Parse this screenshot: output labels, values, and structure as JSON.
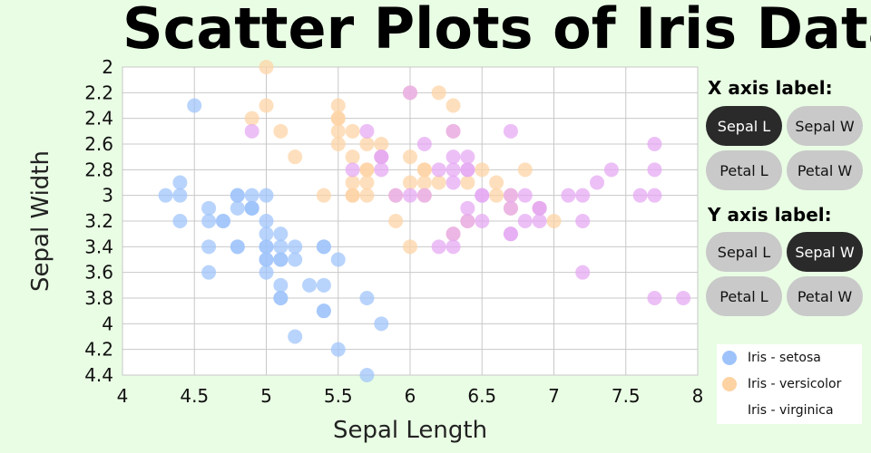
{
  "title": "Scatter Plots of Iris Dataset",
  "controls": {
    "x_label": "X axis label:",
    "y_label": "Y axis label:",
    "x_buttons": [
      "Sepal L",
      "Sepal W",
      "Petal L",
      "Petal W"
    ],
    "y_buttons": [
      "Sepal L",
      "Sepal W",
      "Petal L",
      "Petal W"
    ],
    "x_selected": "Sepal L",
    "y_selected": "Sepal W"
  },
  "colors": {
    "background": "#e9fde4",
    "setosa": "#9ec3fb",
    "versicolor": "#fdd3a3",
    "virginica": "#e5a8f3",
    "button": "#c9c9c9",
    "button_active": "#2a2a2a"
  },
  "chart_data": {
    "type": "scatter",
    "xlabel": "Sepal Length",
    "ylabel": "Sepal Width",
    "xlim": [
      4,
      8
    ],
    "ylim": [
      2,
      4.4
    ],
    "y_inverted": true,
    "grid": true,
    "legend_position": "bottom-right",
    "x_ticks": [
      "4",
      "4.5",
      "5",
      "5.5",
      "6",
      "6.5",
      "7",
      "7.5",
      "8"
    ],
    "y_ticks": [
      "2",
      "2.2",
      "2.4",
      "2.6",
      "2.8",
      "3",
      "3.2",
      "3.4",
      "3.6",
      "3.8",
      "4",
      "4.2",
      "4.4"
    ],
    "series": [
      {
        "name": "Iris - setosa",
        "points": [
          [
            4.5,
            2.3
          ],
          [
            4.3,
            3.0
          ],
          [
            4.4,
            2.9
          ],
          [
            4.4,
            3.0
          ],
          [
            4.4,
            3.2
          ],
          [
            4.6,
            3.1
          ],
          [
            4.6,
            3.2
          ],
          [
            4.6,
            3.4
          ],
          [
            4.6,
            3.6
          ],
          [
            4.7,
            3.2
          ],
          [
            4.7,
            3.2
          ],
          [
            4.8,
            3.0
          ],
          [
            4.8,
            3.0
          ],
          [
            4.8,
            3.1
          ],
          [
            4.8,
            3.4
          ],
          [
            4.8,
            3.4
          ],
          [
            4.9,
            3.0
          ],
          [
            4.9,
            3.1
          ],
          [
            4.9,
            3.1
          ],
          [
            4.9,
            3.1
          ],
          [
            5.0,
            3.0
          ],
          [
            5.0,
            3.2
          ],
          [
            5.0,
            3.3
          ],
          [
            5.0,
            3.4
          ],
          [
            5.0,
            3.4
          ],
          [
            5.0,
            3.5
          ],
          [
            5.0,
            3.5
          ],
          [
            5.0,
            3.6
          ],
          [
            5.1,
            3.3
          ],
          [
            5.1,
            3.4
          ],
          [
            5.1,
            3.5
          ],
          [
            5.1,
            3.5
          ],
          [
            5.1,
            3.7
          ],
          [
            5.1,
            3.8
          ],
          [
            5.1,
            3.8
          ],
          [
            5.2,
            3.4
          ],
          [
            5.2,
            3.5
          ],
          [
            5.2,
            4.1
          ],
          [
            5.3,
            3.7
          ],
          [
            5.4,
            3.4
          ],
          [
            5.4,
            3.4
          ],
          [
            5.4,
            3.7
          ],
          [
            5.4,
            3.9
          ],
          [
            5.4,
            3.9
          ],
          [
            5.5,
            3.5
          ],
          [
            5.5,
            4.2
          ],
          [
            5.7,
            3.8
          ],
          [
            5.7,
            4.4
          ],
          [
            5.8,
            4.0
          ]
        ]
      },
      {
        "name": "Iris - versicolor",
        "points": [
          [
            5.0,
            2.0
          ],
          [
            4.9,
            2.4
          ],
          [
            5.0,
            2.3
          ],
          [
            5.1,
            2.5
          ],
          [
            5.2,
            2.7
          ],
          [
            5.4,
            3.0
          ],
          [
            5.5,
            2.3
          ],
          [
            5.5,
            2.4
          ],
          [
            5.5,
            2.4
          ],
          [
            5.5,
            2.5
          ],
          [
            5.5,
            2.6
          ],
          [
            5.6,
            2.5
          ],
          [
            5.6,
            2.7
          ],
          [
            5.6,
            2.9
          ],
          [
            5.6,
            3.0
          ],
          [
            5.6,
            3.0
          ],
          [
            5.7,
            2.6
          ],
          [
            5.7,
            2.8
          ],
          [
            5.7,
            2.8
          ],
          [
            5.7,
            2.9
          ],
          [
            5.7,
            3.0
          ],
          [
            5.8,
            2.6
          ],
          [
            5.8,
            2.7
          ],
          [
            5.9,
            3.0
          ],
          [
            5.9,
            3.2
          ],
          [
            6.0,
            2.2
          ],
          [
            6.0,
            2.7
          ],
          [
            6.0,
            2.9
          ],
          [
            6.0,
            3.4
          ],
          [
            6.1,
            2.8
          ],
          [
            6.1,
            2.8
          ],
          [
            6.1,
            2.9
          ],
          [
            6.1,
            3.0
          ],
          [
            6.2,
            2.2
          ],
          [
            6.2,
            2.9
          ],
          [
            6.3,
            2.3
          ],
          [
            6.3,
            2.5
          ],
          [
            6.3,
            3.3
          ],
          [
            6.4,
            2.9
          ],
          [
            6.4,
            3.2
          ],
          [
            6.5,
            2.8
          ],
          [
            6.6,
            2.9
          ],
          [
            6.6,
            3.0
          ],
          [
            6.7,
            3.0
          ],
          [
            6.7,
            3.1
          ],
          [
            6.8,
            2.8
          ],
          [
            6.9,
            3.1
          ],
          [
            7.0,
            3.2
          ]
        ]
      },
      {
        "name": "Iris - virginica",
        "points": [
          [
            4.9,
            2.5
          ],
          [
            5.6,
            2.8
          ],
          [
            5.7,
            2.5
          ],
          [
            5.8,
            2.7
          ],
          [
            5.8,
            2.7
          ],
          [
            5.8,
            2.8
          ],
          [
            5.9,
            3.0
          ],
          [
            6.0,
            2.2
          ],
          [
            6.0,
            3.0
          ],
          [
            6.1,
            2.6
          ],
          [
            6.1,
            3.0
          ],
          [
            6.2,
            2.8
          ],
          [
            6.2,
            3.4
          ],
          [
            6.3,
            2.5
          ],
          [
            6.3,
            2.7
          ],
          [
            6.3,
            2.8
          ],
          [
            6.3,
            2.9
          ],
          [
            6.3,
            3.3
          ],
          [
            6.3,
            3.4
          ],
          [
            6.4,
            2.7
          ],
          [
            6.4,
            2.8
          ],
          [
            6.4,
            2.8
          ],
          [
            6.4,
            3.1
          ],
          [
            6.4,
            3.2
          ],
          [
            6.5,
            3.0
          ],
          [
            6.5,
            3.0
          ],
          [
            6.5,
            3.2
          ],
          [
            6.7,
            2.5
          ],
          [
            6.7,
            3.0
          ],
          [
            6.7,
            3.1
          ],
          [
            6.7,
            3.3
          ],
          [
            6.7,
            3.3
          ],
          [
            6.8,
            3.0
          ],
          [
            6.8,
            3.2
          ],
          [
            6.9,
            3.1
          ],
          [
            6.9,
            3.1
          ],
          [
            6.9,
            3.2
          ],
          [
            7.1,
            3.0
          ],
          [
            7.2,
            3.0
          ],
          [
            7.2,
            3.2
          ],
          [
            7.2,
            3.6
          ],
          [
            7.3,
            2.9
          ],
          [
            7.4,
            2.8
          ],
          [
            7.6,
            3.0
          ],
          [
            7.7,
            2.6
          ],
          [
            7.7,
            2.8
          ],
          [
            7.7,
            3.0
          ],
          [
            7.7,
            3.8
          ],
          [
            7.9,
            3.8
          ]
        ]
      }
    ]
  }
}
